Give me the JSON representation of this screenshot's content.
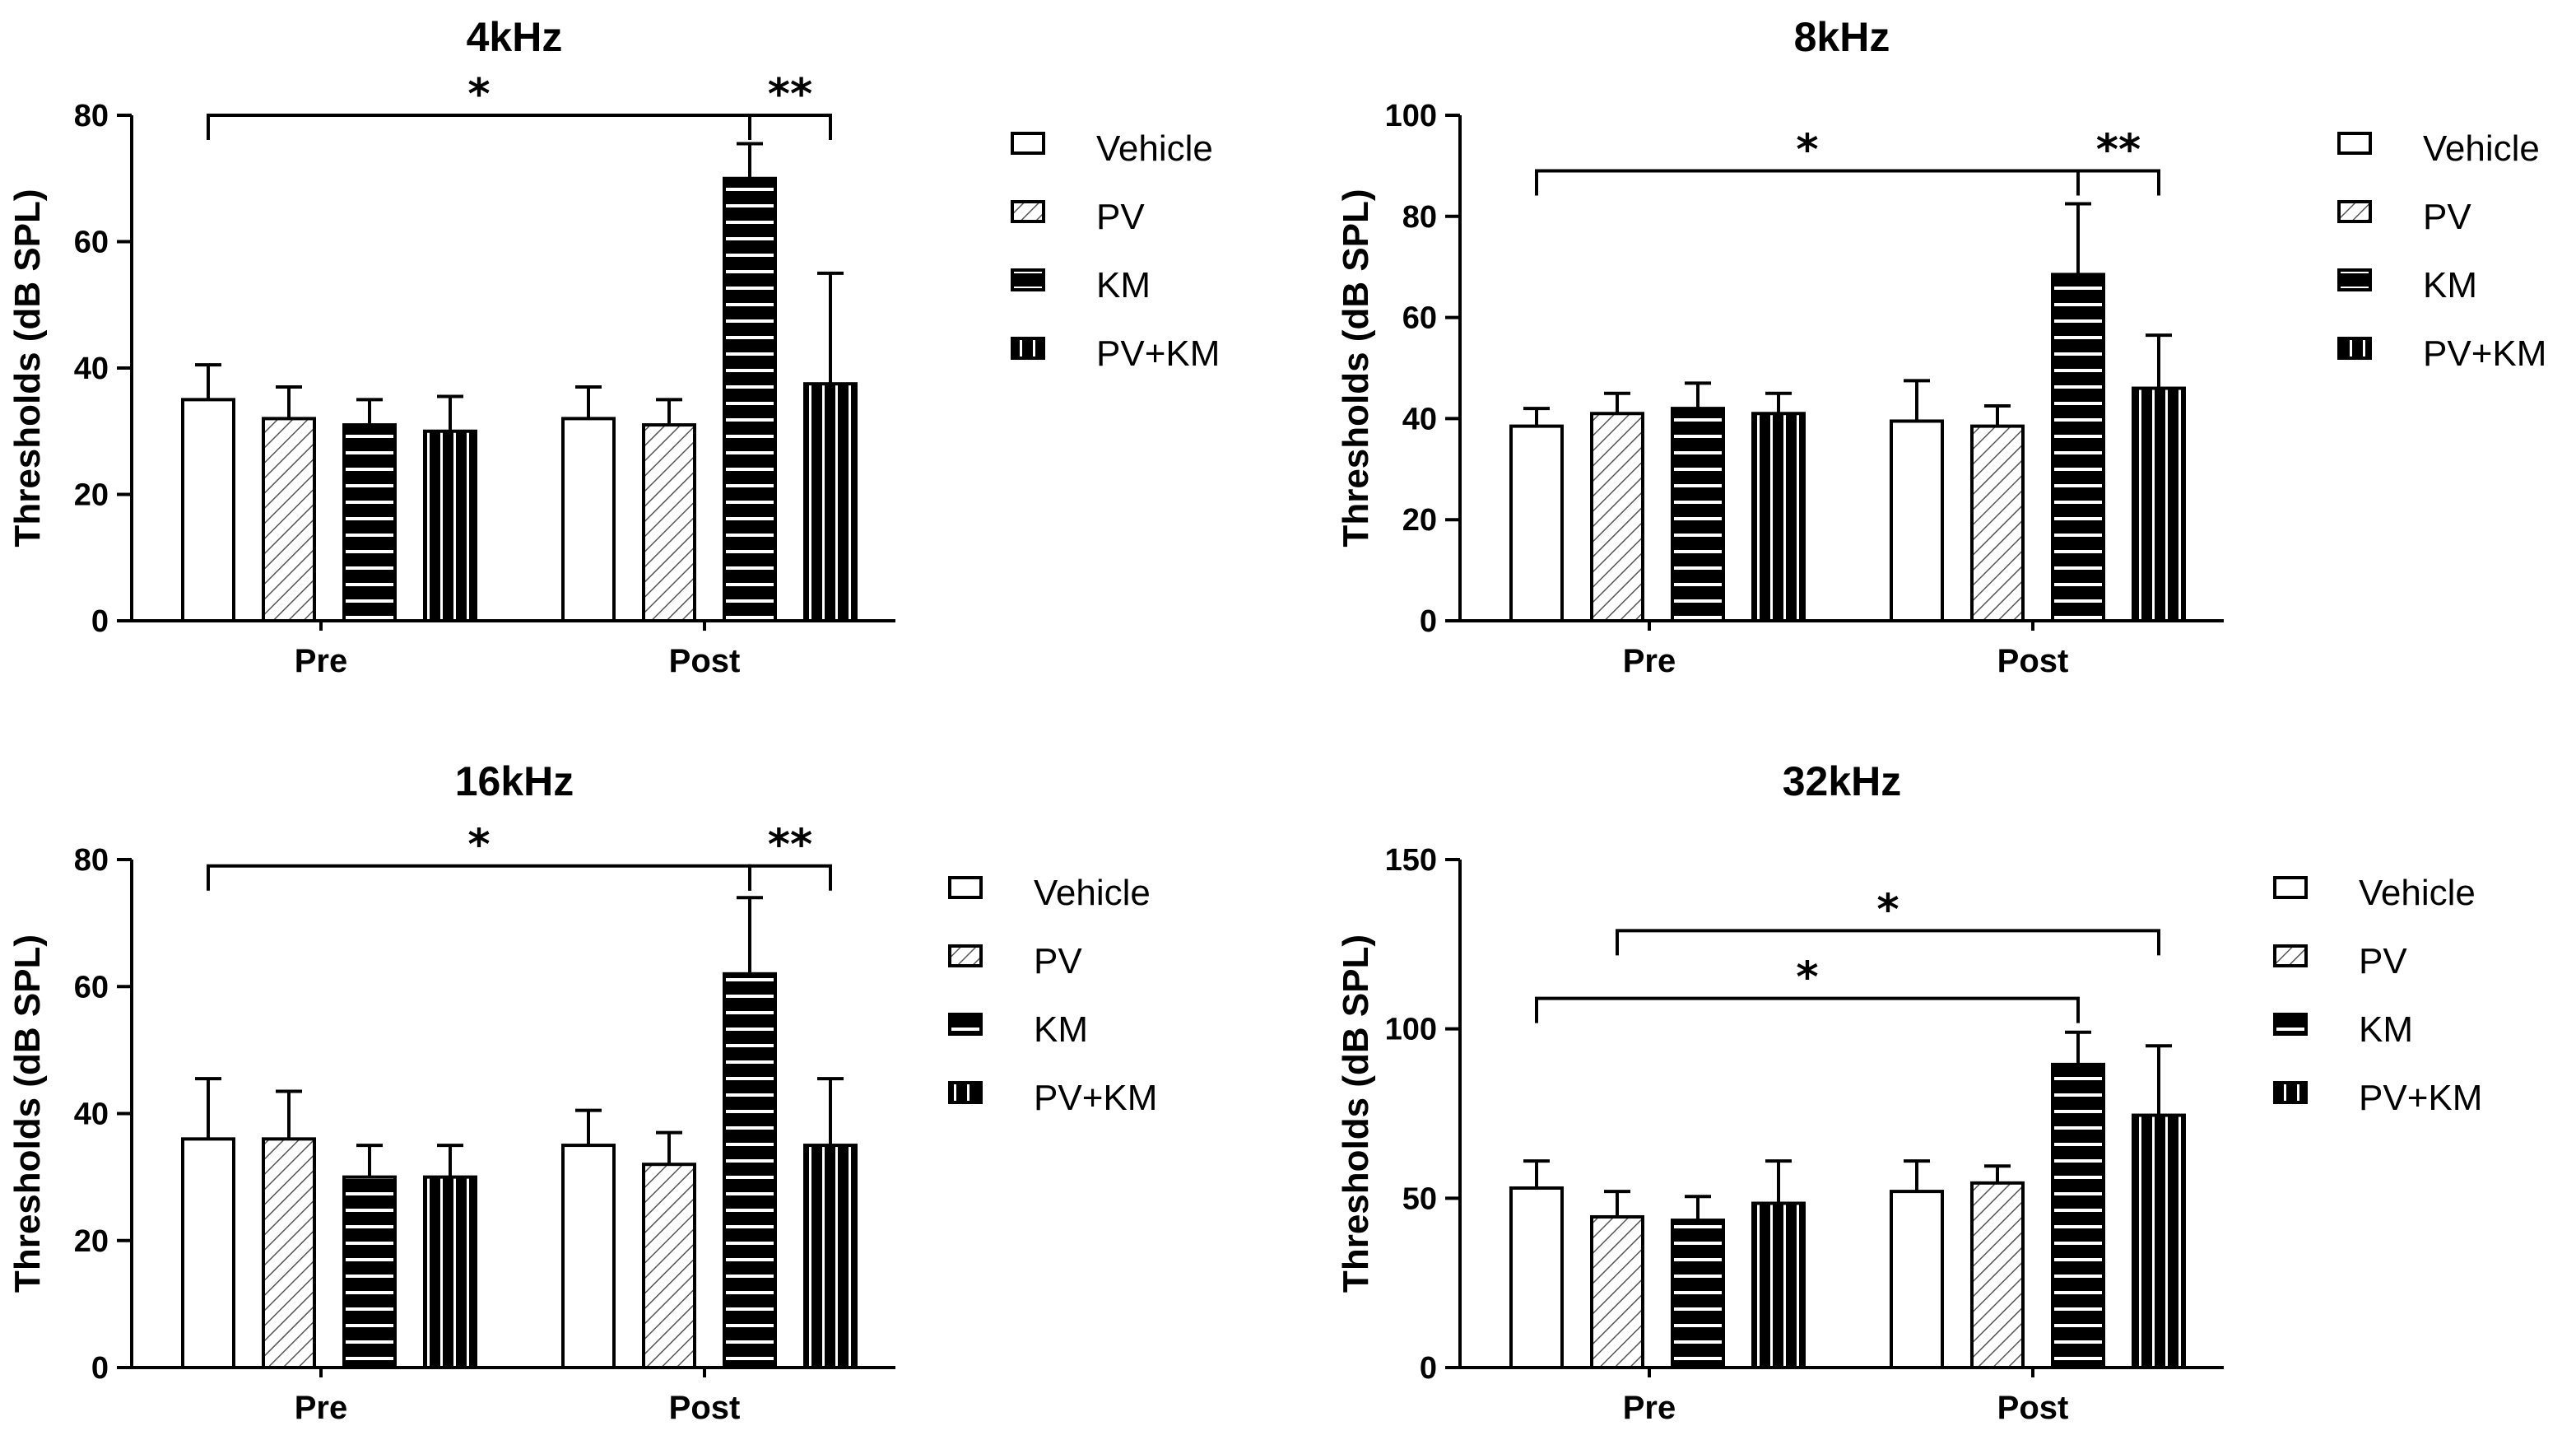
{
  "figure": {
    "colors": {
      "stroke": "#000000",
      "background": "#ffffff"
    },
    "patterns": [
      "white",
      "diagonal",
      "horizontal",
      "vertical"
    ]
  },
  "chart_data": [
    {
      "type": "bar",
      "title": "4kHz",
      "ylabel": "Thresholds (dB SPL)",
      "xlabel": "",
      "ylim": [
        0,
        80
      ],
      "yticks": [
        0,
        20,
        40,
        60,
        80
      ],
      "categories": [
        "Pre",
        "Post"
      ],
      "series": [
        {
          "name": "Vehicle",
          "values": [
            35,
            32
          ],
          "errors": [
            5.5,
            5
          ]
        },
        {
          "name": "PV",
          "values": [
            32,
            31
          ],
          "errors": [
            5,
            4
          ]
        },
        {
          "name": "KM",
          "values": [
            31,
            70
          ],
          "errors": [
            4,
            5.5
          ]
        },
        {
          "name": "PV+KM",
          "values": [
            30,
            37.5
          ],
          "errors": [
            5.5,
            17.5
          ]
        }
      ],
      "annotations": [
        {
          "from": [
            0,
            0
          ],
          "to": [
            1,
            2
          ],
          "level": 80,
          "label": "*"
        },
        {
          "from": [
            1,
            2
          ],
          "to": [
            1,
            3
          ],
          "level": 80,
          "label": "**"
        }
      ]
    },
    {
      "type": "bar",
      "title": "8kHz",
      "ylabel": "Thresholds (dB SPL)",
      "xlabel": "",
      "ylim": [
        0,
        100
      ],
      "yticks": [
        0,
        20,
        40,
        60,
        80,
        100
      ],
      "categories": [
        "Pre",
        "Post"
      ],
      "series": [
        {
          "name": "Vehicle",
          "values": [
            38.5,
            39.5
          ],
          "errors": [
            3.5,
            8
          ]
        },
        {
          "name": "PV",
          "values": [
            41,
            38.5
          ],
          "errors": [
            4,
            4
          ]
        },
        {
          "name": "KM",
          "values": [
            42,
            68.5
          ],
          "errors": [
            5,
            14
          ]
        },
        {
          "name": "PV+KM",
          "values": [
            41,
            46
          ],
          "errors": [
            4,
            10.5
          ]
        }
      ],
      "annotations": [
        {
          "from": [
            0,
            0
          ],
          "to": [
            1,
            2
          ],
          "level": 89,
          "label": "*"
        },
        {
          "from": [
            1,
            2
          ],
          "to": [
            1,
            3
          ],
          "level": 89,
          "label": "**"
        }
      ]
    },
    {
      "type": "bar",
      "title": "16kHz",
      "ylabel": "Thresholds (dB SPL)",
      "xlabel": "",
      "ylim": [
        0,
        80
      ],
      "yticks": [
        0,
        20,
        40,
        60,
        80
      ],
      "categories": [
        "Pre",
        "Post"
      ],
      "series": [
        {
          "name": "Vehicle",
          "values": [
            36,
            35
          ],
          "errors": [
            9.5,
            5.5
          ]
        },
        {
          "name": "PV",
          "values": [
            36,
            32
          ],
          "errors": [
            7.5,
            5
          ]
        },
        {
          "name": "KM",
          "values": [
            30,
            62
          ],
          "errors": [
            5,
            12
          ]
        },
        {
          "name": "PV+KM",
          "values": [
            30,
            35
          ],
          "errors": [
            5,
            10.5
          ]
        }
      ],
      "annotations": [
        {
          "from": [
            0,
            0
          ],
          "to": [
            1,
            2
          ],
          "level": 79,
          "label": "*"
        },
        {
          "from": [
            1,
            2
          ],
          "to": [
            1,
            3
          ],
          "level": 79,
          "label": "**"
        }
      ]
    },
    {
      "type": "bar",
      "title": "32kHz",
      "ylabel": "Thresholds (dB SPL)",
      "xlabel": "",
      "ylim": [
        0,
        150
      ],
      "yticks": [
        0,
        50,
        100,
        150
      ],
      "categories": [
        "Pre",
        "Post"
      ],
      "series": [
        {
          "name": "Vehicle",
          "values": [
            53,
            52
          ],
          "errors": [
            8,
            9
          ]
        },
        {
          "name": "PV",
          "values": [
            44.5,
            54.5
          ],
          "errors": [
            7.5,
            5
          ]
        },
        {
          "name": "KM",
          "values": [
            43.5,
            89.5
          ],
          "errors": [
            7,
            9.5
          ]
        },
        {
          "name": "PV+KM",
          "values": [
            48.5,
            74.5
          ],
          "errors": [
            12.5,
            20.5
          ]
        }
      ],
      "annotations": [
        {
          "from": [
            0,
            0
          ],
          "to": [
            1,
            2
          ],
          "level": 109,
          "label": "*"
        },
        {
          "from": [
            0,
            1
          ],
          "to": [
            1,
            3
          ],
          "level": 129,
          "label": "*"
        }
      ]
    }
  ]
}
